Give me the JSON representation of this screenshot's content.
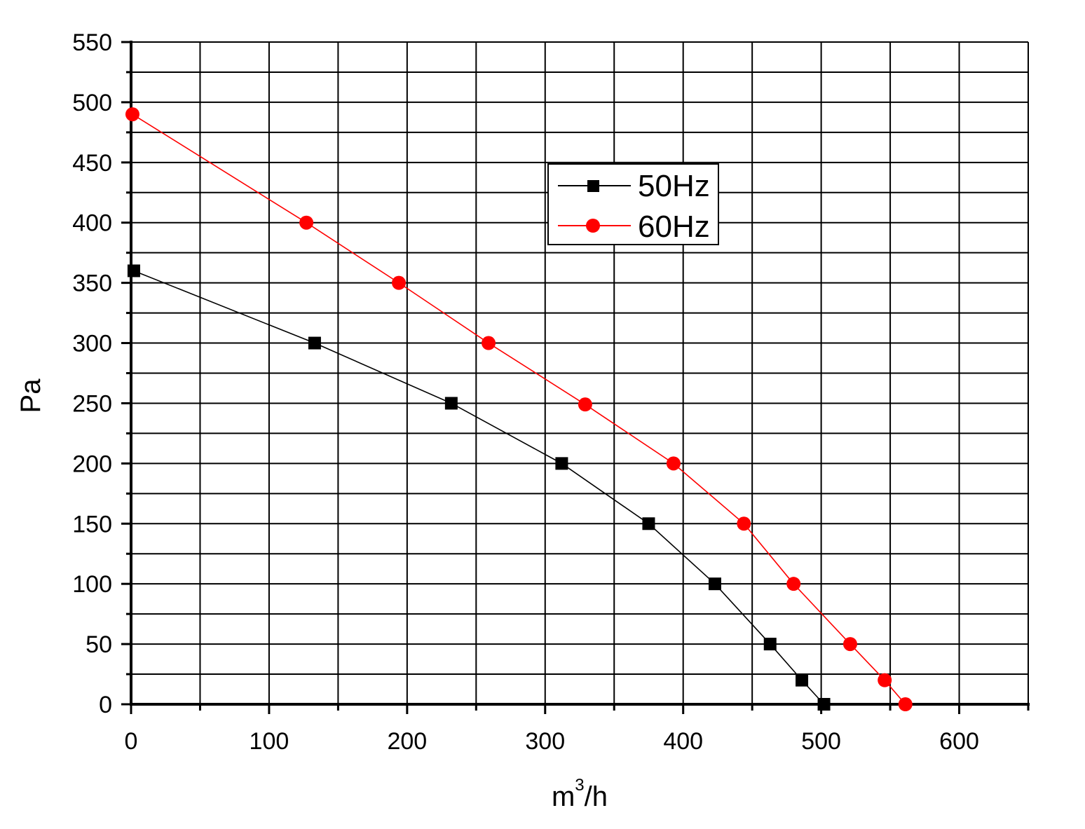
{
  "chart_data": {
    "type": "line",
    "xlabel": "m",
    "xlabel_superscript": "3",
    "xlabel_suffix": "/h",
    "ylabel": "Pa",
    "xlim": [
      0,
      650
    ],
    "ylim": [
      0,
      550
    ],
    "x_ticks": [
      "0",
      "100",
      "200",
      "300",
      "400",
      "500",
      "600"
    ],
    "y_ticks": [
      "0",
      "50",
      "100",
      "150",
      "200",
      "250",
      "300",
      "350",
      "400",
      "450",
      "500",
      "550"
    ],
    "grid": true,
    "legend_position": "top-center",
    "series": [
      {
        "name": "50Hz",
        "color": "#000000",
        "marker": "square",
        "points": [
          [
            2,
            360
          ],
          [
            133,
            300
          ],
          [
            232,
            250
          ],
          [
            312,
            200
          ],
          [
            375,
            150
          ],
          [
            423,
            100
          ],
          [
            463,
            50
          ],
          [
            486,
            20
          ],
          [
            502,
            0
          ]
        ]
      },
      {
        "name": "60Hz",
        "color": "#ff0000",
        "marker": "circle",
        "points": [
          [
            1,
            490
          ],
          [
            127,
            400
          ],
          [
            194,
            350
          ],
          [
            259,
            300
          ],
          [
            329,
            249
          ],
          [
            393,
            200
          ],
          [
            444,
            150
          ],
          [
            480,
            100
          ],
          [
            521,
            50
          ],
          [
            546,
            20
          ],
          [
            561,
            0
          ]
        ]
      }
    ]
  }
}
